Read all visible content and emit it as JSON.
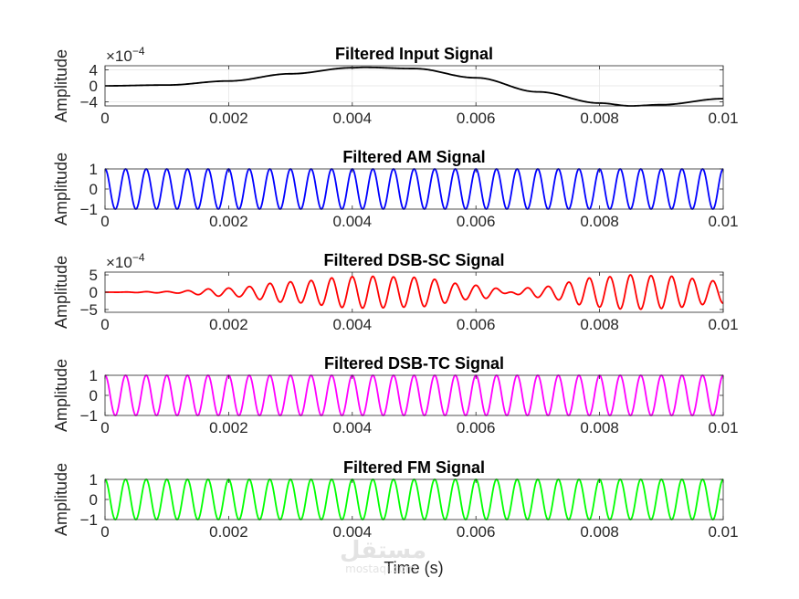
{
  "figure": {
    "xlabel": "Time (s)",
    "watermark": {
      "logo": "مستقل",
      "site": "mostaqi.com"
    }
  },
  "chart_data": [
    {
      "type": "line",
      "title": "Filtered Input Signal",
      "ylabel": "Amplitude",
      "exponent": "-4",
      "xlim": [
        0,
        0.01
      ],
      "ylim": [
        -5,
        5
      ],
      "yticks": [
        -4,
        0,
        4
      ],
      "xticks": [
        0,
        0.002,
        0.004,
        0.006,
        0.008,
        0.01
      ],
      "xtick_labels": [
        "0",
        "0.002",
        "0.004",
        "0.006",
        "0.008",
        "0.01"
      ],
      "grid": true,
      "color": "#000000",
      "series": [
        {
          "x": [
            0,
            0.001,
            0.002,
            0.003,
            0.004,
            0.0042,
            0.005,
            0.006,
            0.007,
            0.008,
            0.0085,
            0.009,
            0.01
          ],
          "values": [
            0,
            0.2,
            1.2,
            3.0,
            4.5,
            4.6,
            4.3,
            2.0,
            -1.5,
            -4.3,
            -5.0,
            -4.7,
            -3.2
          ]
        }
      ]
    },
    {
      "type": "line",
      "title": "Filtered AM Signal",
      "ylabel": "Amplitude",
      "exponent": "",
      "xlim": [
        0,
        0.01
      ],
      "ylim": [
        -1,
        1
      ],
      "yticks": [
        -1,
        0,
        1
      ],
      "xticks": [
        0,
        0.002,
        0.004,
        0.006,
        0.008,
        0.01
      ],
      "xtick_labels": [
        "0",
        "0.002",
        "0.004",
        "0.006",
        "0.008",
        "0.01"
      ],
      "grid": false,
      "color": "#0000ff",
      "series": [
        {
          "waveform": "cosine",
          "frequency_hz": 3000,
          "amplitude": 1
        }
      ]
    },
    {
      "type": "line",
      "title": "Filtered DSB-SC Signal",
      "ylabel": "Amplitude",
      "exponent": "-4",
      "xlim": [
        0,
        0.01
      ],
      "ylim": [
        -5.8,
        5.8
      ],
      "yticks": [
        -5,
        0,
        5
      ],
      "xticks": [
        0,
        0.002,
        0.004,
        0.006,
        0.008,
        0.01
      ],
      "xtick_labels": [
        "0",
        "0.002",
        "0.004",
        "0.006",
        "0.008",
        "0.01"
      ],
      "grid": false,
      "color": "#ff0000",
      "series": [
        {
          "waveform": "modulated-cosine",
          "frequency_hz": 3000,
          "envelope_x": [
            0,
            0.001,
            0.002,
            0.003,
            0.004,
            0.0042,
            0.005,
            0.006,
            0.007,
            0.008,
            0.0085,
            0.009,
            0.01
          ],
          "envelope": [
            0,
            0.2,
            1.2,
            3.0,
            4.5,
            4.6,
            4.3,
            2.0,
            -1.5,
            -4.3,
            -5.0,
            -4.7,
            -3.2
          ]
        }
      ]
    },
    {
      "type": "line",
      "title": "Filtered DSB-TC Signal",
      "ylabel": "Amplitude",
      "exponent": "",
      "xlim": [
        0,
        0.01
      ],
      "ylim": [
        -1,
        1
      ],
      "yticks": [
        -1,
        0,
        1
      ],
      "xticks": [
        0,
        0.002,
        0.004,
        0.006,
        0.008,
        0.01
      ],
      "xtick_labels": [
        "0",
        "0.002",
        "0.004",
        "0.006",
        "0.008",
        "0.01"
      ],
      "grid": false,
      "color": "#ff00ff",
      "series": [
        {
          "waveform": "cosine",
          "frequency_hz": 3000,
          "amplitude": 1
        }
      ]
    },
    {
      "type": "line",
      "title": "Filtered FM Signal",
      "ylabel": "Amplitude",
      "exponent": "",
      "xlim": [
        0,
        0.01
      ],
      "ylim": [
        -1,
        1
      ],
      "yticks": [
        -1,
        0,
        1
      ],
      "xticks": [
        0,
        0.002,
        0.004,
        0.006,
        0.008,
        0.01
      ],
      "xtick_labels": [
        "0",
        "0.002",
        "0.004",
        "0.006",
        "0.008",
        "0.01"
      ],
      "grid": false,
      "color": "#00ff00",
      "series": [
        {
          "waveform": "cosine",
          "frequency_hz": 3000,
          "amplitude": 1
        }
      ]
    }
  ]
}
